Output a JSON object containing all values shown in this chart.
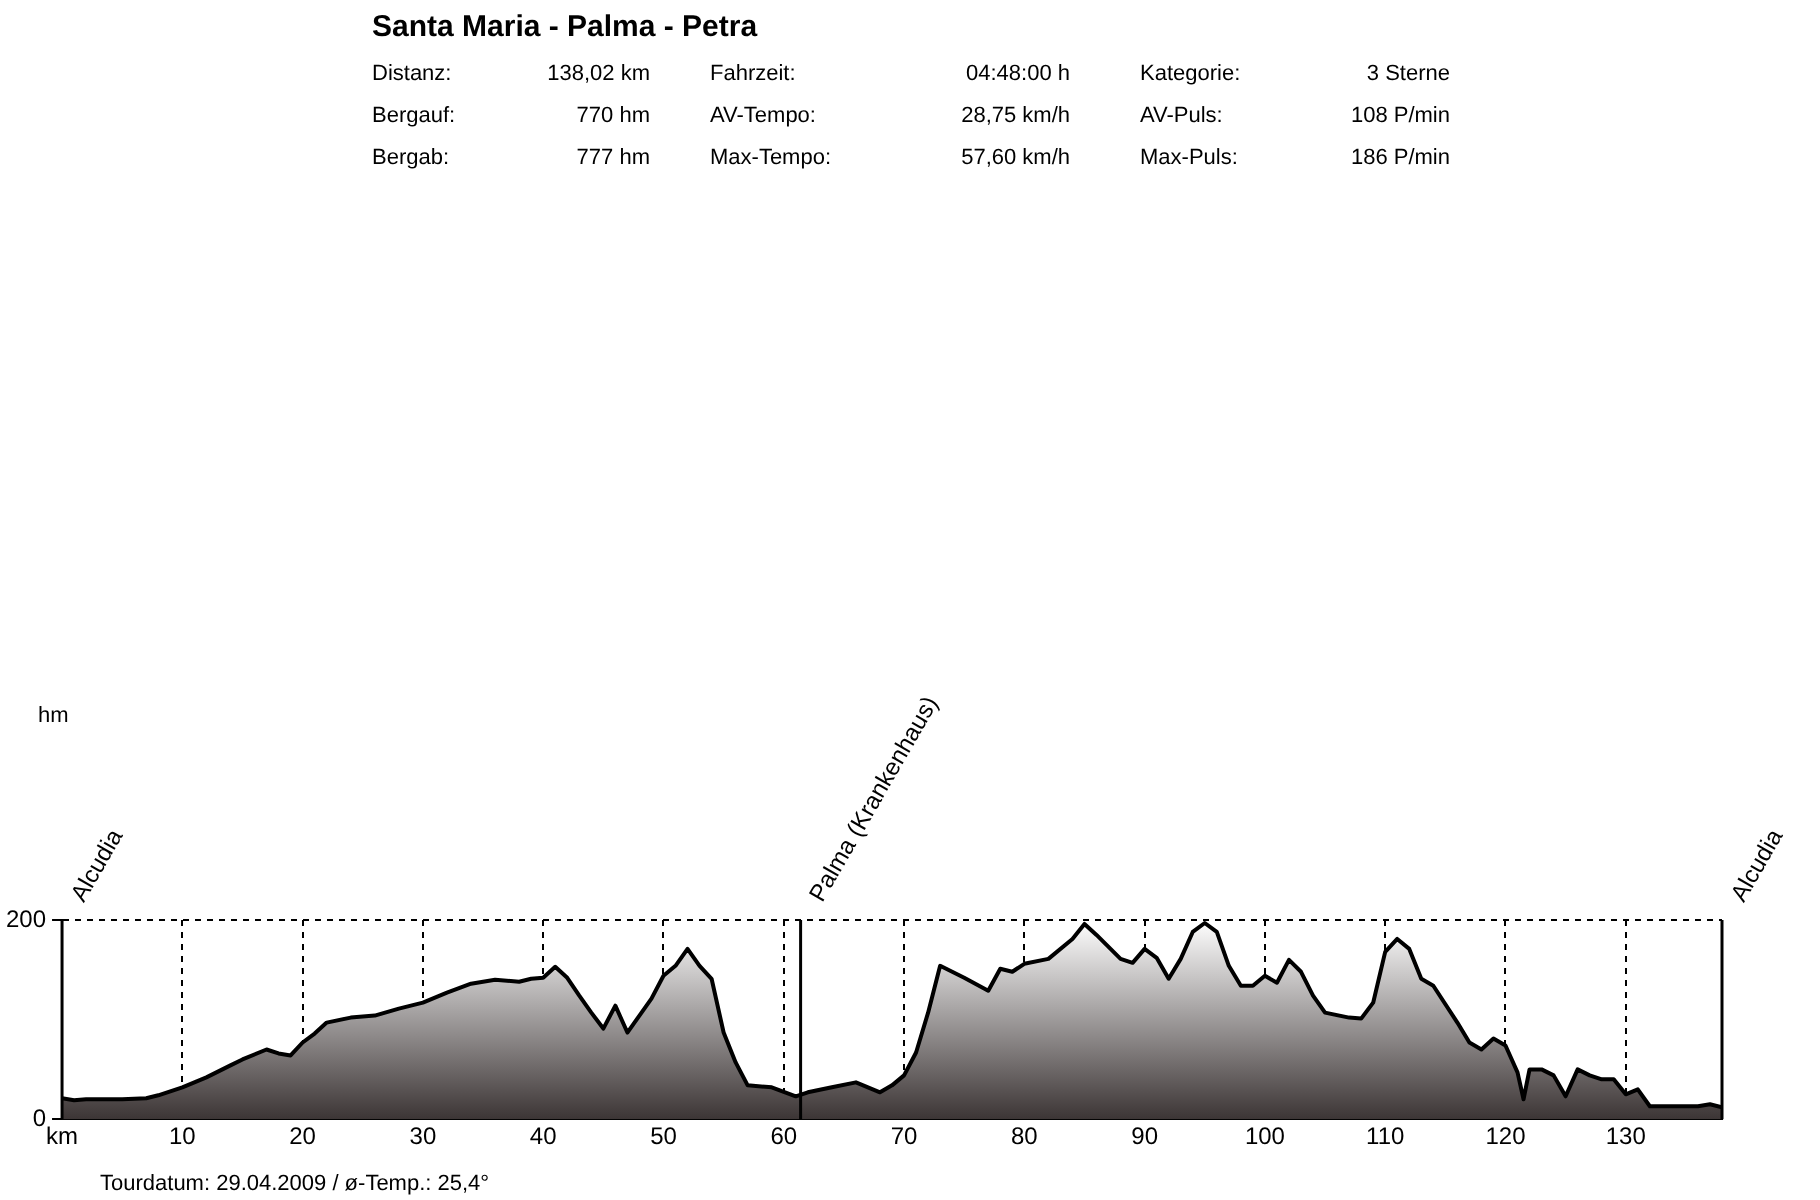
{
  "chart_data": {
    "type": "area",
    "title": "Santa Maria - Palma - Petra",
    "annotations": [
      "Distanz:",
      "138,02 km",
      "Fahrzeit:",
      "04:48:00 h",
      "Kategorie:",
      "3 Sterne",
      "Bergauf:",
      "770 hm",
      "AV-Tempo:",
      "28,75 km/h",
      "AV-Puls:",
      "108 P/min",
      "Bergab:",
      "777 hm",
      "Max-Tempo:",
      "57,60 km/h",
      "Max-Puls:",
      "186 P/min",
      "Tourdatum: 29.04.2009  /  ø-Temp.: 25,4°",
      "hm"
    ],
    "x": [
      0,
      1,
      2,
      5,
      7,
      8,
      10,
      12,
      14,
      15,
      17,
      18,
      19,
      20,
      21,
      22,
      24,
      26,
      28,
      30,
      32,
      34,
      36,
      38,
      39,
      40,
      41,
      42,
      43,
      44,
      45,
      46,
      47,
      48,
      49,
      50,
      51,
      52,
      53,
      54,
      55,
      56,
      57,
      59,
      61,
      62,
      64,
      66,
      68,
      69,
      70,
      71,
      72,
      73,
      74,
      75,
      77,
      78,
      79,
      80,
      82,
      84,
      85,
      86,
      88,
      89,
      90,
      91,
      92,
      93,
      94,
      95,
      96,
      97,
      98,
      99,
      100,
      101,
      102,
      103,
      104,
      105,
      107,
      108,
      109,
      110,
      111,
      112,
      113,
      114,
      116,
      117,
      118,
      119,
      120,
      121,
      121.5,
      122,
      123,
      124,
      125,
      126,
      127,
      128,
      129,
      130,
      131,
      132,
      134,
      136,
      137,
      138
    ],
    "series": [
      {
        "color": "#3c3535",
        "values": [
          21,
          19,
          20,
          20,
          21,
          24,
          32,
          42,
          54,
          60,
          70,
          66,
          64,
          77,
          86,
          97,
          102,
          104,
          111,
          117,
          127,
          136,
          140,
          138,
          141,
          142,
          153,
          142,
          124,
          107,
          91,
          114,
          87,
          104,
          121,
          144,
          154,
          171,
          154,
          141,
          87,
          57,
          34,
          32,
          23,
          27,
          32,
          37,
          27,
          34,
          44,
          67,
          107,
          154,
          148,
          142,
          129,
          151,
          148,
          156,
          161,
          181,
          196,
          185,
          161,
          157,
          171,
          162,
          141,
          161,
          188,
          197,
          188,
          154,
          134,
          134,
          144,
          137,
          160,
          148,
          124,
          107,
          102,
          101,
          117,
          168,
          181,
          171,
          141,
          134,
          97,
          77,
          70,
          81,
          74,
          47,
          20,
          50,
          50,
          44,
          23,
          50,
          44,
          40,
          40,
          25,
          30,
          13,
          13,
          13,
          15,
          12
        ]
      }
    ],
    "xlim": [
      0,
      138
    ],
    "xticks": [
      {
        "value": 0,
        "label": "km"
      },
      10,
      20,
      30,
      40,
      50,
      60,
      70,
      80,
      90,
      100,
      110,
      120,
      130
    ],
    "ylim": [
      0,
      200
    ],
    "yticks": [
      0,
      200
    ],
    "grid": true,
    "legend": false,
    "ref_lines": [
      {
        "axis": "x",
        "value": 0,
        "label": "Alcudia"
      },
      {
        "axis": "x",
        "value": 61.4,
        "label": "Palma (Krankenhaus)",
        "color": "#000000"
      },
      {
        "axis": "x",
        "value": 138,
        "label": "Alcudia"
      }
    ]
  }
}
